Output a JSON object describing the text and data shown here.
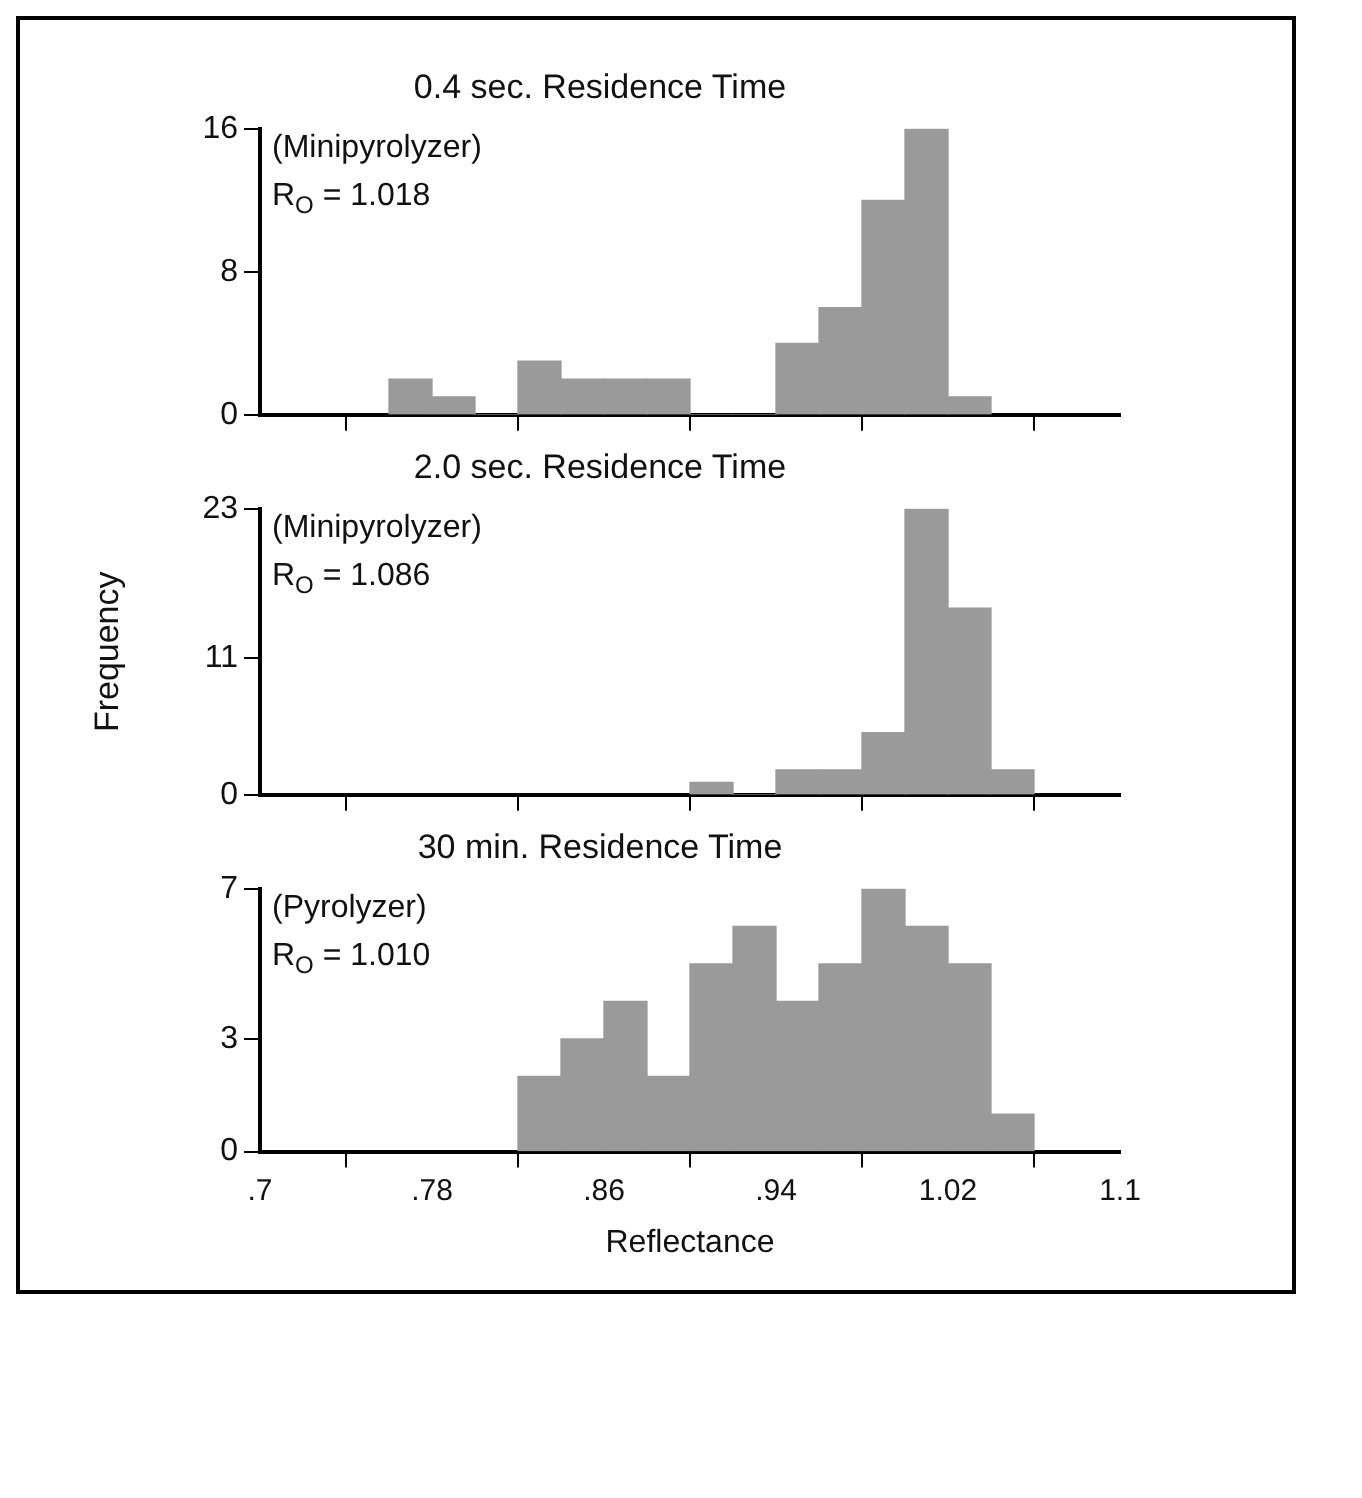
{
  "chart_data": [
    {
      "type": "histogram",
      "title": "0.4 sec. Residence Time",
      "annotations": [
        "(Minipyrolyzer)",
        "R$_{O}$ = 1.018"
      ],
      "bins": [
        0.76,
        0.78,
        0.8,
        0.82,
        0.84,
        0.86,
        0.88,
        0.9,
        0.92,
        0.94,
        0.96,
        0.98,
        1.0,
        1.02,
        1.04
      ],
      "values": [
        2,
        1,
        0,
        3,
        2,
        2,
        2,
        0,
        0,
        4,
        6,
        12,
        16,
        1
      ],
      "color": "#9a9a9a",
      "xlim": [
        0.7,
        1.1
      ],
      "xticks": [
        {
          "value": 0.7,
          "label": null
        },
        {
          "value": 0.78,
          "label": null
        },
        {
          "value": 0.86,
          "label": null
        },
        {
          "value": 0.94,
          "label": null
        },
        {
          "value": 1.02,
          "label": null
        },
        {
          "value": 1.1,
          "label": null
        }
      ],
      "ylim": [
        0,
        16
      ],
      "yticks": [
        0,
        8,
        16
      ],
      "tick_labels": "y"
    },
    {
      "type": "histogram",
      "title": "2.0 sec. Residence Time",
      "ylabel": "Frequency",
      "annotations": [
        "(Minipyrolyzer)",
        "R$_{O}$ = 1.086"
      ],
      "bins": [
        0.9,
        0.92,
        0.94,
        0.96,
        0.98,
        1.0,
        1.02,
        1.04,
        1.06
      ],
      "values": [
        1,
        0,
        2,
        2,
        5,
        23,
        15,
        2
      ],
      "color": "#9a9a9a",
      "xlim": [
        0.7,
        1.1
      ],
      "xticks": [
        {
          "value": 0.7,
          "label": null
        },
        {
          "value": 0.78,
          "label": null
        },
        {
          "value": 0.86,
          "label": null
        },
        {
          "value": 0.94,
          "label": null
        },
        {
          "value": 1.02,
          "label": null
        },
        {
          "value": 1.1,
          "label": null
        }
      ],
      "ylim": [
        0,
        23
      ],
      "yticks": [
        0,
        11,
        23
      ],
      "tick_labels": "y"
    },
    {
      "type": "histogram",
      "title": "30 min. Residence Time",
      "xlabel": "Reflectance",
      "annotations": [
        "(Pyrolyzer)",
        "R$_{O}$ = 1.010"
      ],
      "bins": [
        0.82,
        0.84,
        0.86,
        0.88,
        0.9,
        0.92,
        0.94,
        0.96,
        0.98,
        1.0,
        1.02,
        1.04,
        1.06
      ],
      "values": [
        2,
        3,
        4,
        2,
        5,
        6,
        4,
        5,
        7,
        6,
        5,
        1
      ],
      "color": "#9a9a9a",
      "xlim": [
        0.7,
        1.1
      ],
      "xticks": [
        {
          "value": 0.7,
          "label": ".7"
        },
        {
          "value": 0.78,
          "label": ".78"
        },
        {
          "value": 0.86,
          "label": ".86"
        },
        {
          "value": 0.94,
          "label": ".94"
        },
        {
          "value": 1.02,
          "label": "1.02"
        },
        {
          "value": 1.1,
          "label": "1.1"
        }
      ],
      "ylim": [
        0,
        7
      ],
      "yticks": [
        0,
        3,
        7
      ]
    }
  ]
}
